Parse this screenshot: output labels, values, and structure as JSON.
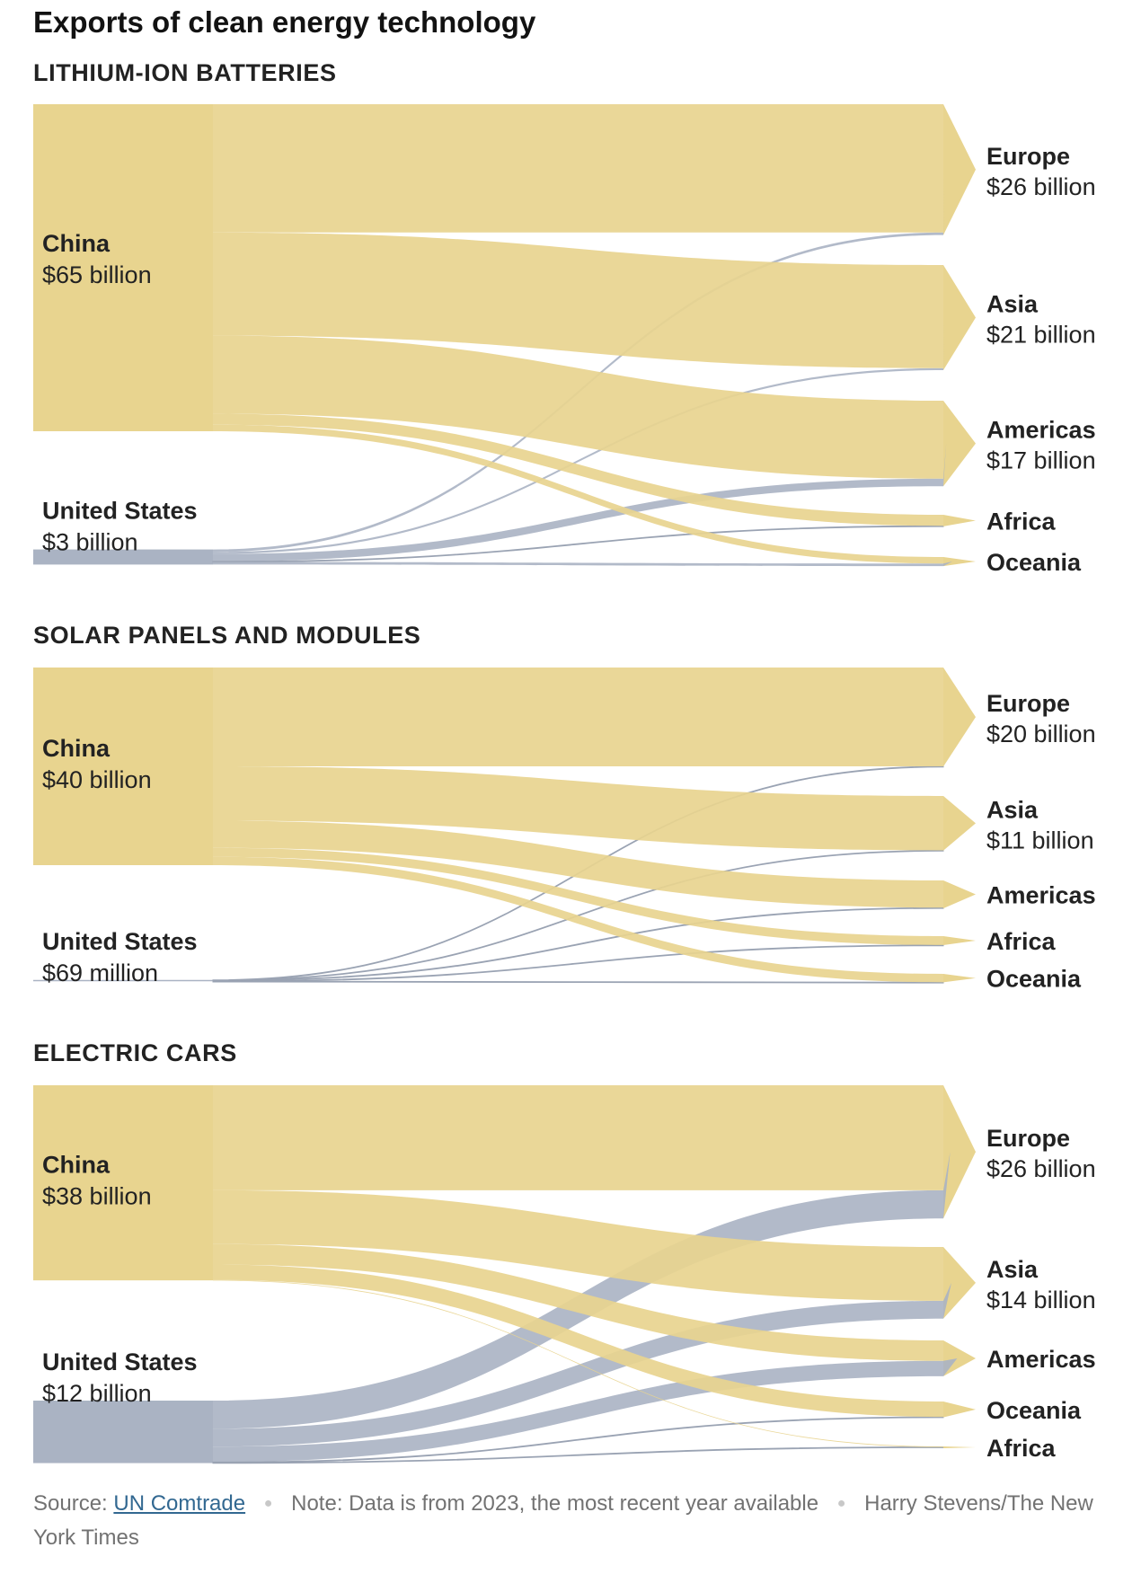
{
  "title": "Exports of clean energy technology",
  "colors": {
    "china": "#e8d48f",
    "united_states": "#aab3c3",
    "text": "#222222",
    "footer_text": "#727272",
    "link": "#326891"
  },
  "footer": {
    "source_label": "Source:",
    "source_link": "UN Comtrade",
    "note": "Note: Data is from 2023, the most recent year available",
    "credit": "Harry Stevens/The New York Times"
  },
  "chart_data": [
    {
      "type": "sankey",
      "title": "LITHIUM-ION BATTERIES",
      "unit": "USD billions",
      "sources": [
        {
          "id": "china",
          "name": "China",
          "label": "$65 billion",
          "value": 65
        },
        {
          "id": "us",
          "name": "United States",
          "label": "$3 billion",
          "value": 3
        }
      ],
      "targets": [
        {
          "id": "europe",
          "name": "Europe",
          "label": "$26 billion"
        },
        {
          "id": "asia",
          "name": "Asia",
          "label": "$21 billion"
        },
        {
          "id": "americas",
          "name": "Americas",
          "label": "$17 billion"
        },
        {
          "id": "africa",
          "name": "Africa",
          "label": ""
        },
        {
          "id": "oceania",
          "name": "Oceania",
          "label": ""
        }
      ],
      "flows": [
        {
          "source": "china",
          "target": "europe",
          "value": 25.5
        },
        {
          "source": "china",
          "target": "asia",
          "value": 20.5
        },
        {
          "source": "china",
          "target": "americas",
          "value": 15.5
        },
        {
          "source": "china",
          "target": "africa",
          "value": 2.2
        },
        {
          "source": "china",
          "target": "oceania",
          "value": 1.3
        },
        {
          "source": "us",
          "target": "europe",
          "value": 0.5
        },
        {
          "source": "us",
          "target": "asia",
          "value": 0.4
        },
        {
          "source": "us",
          "target": "americas",
          "value": 1.5
        },
        {
          "source": "us",
          "target": "africa",
          "value": 0.1
        },
        {
          "source": "us",
          "target": "oceania",
          "value": 0.5
        }
      ]
    },
    {
      "type": "sankey",
      "title": "SOLAR PANELS AND MODULES",
      "unit": "USD billions",
      "sources": [
        {
          "id": "china",
          "name": "China",
          "label": "$40 billion",
          "value": 40
        },
        {
          "id": "us",
          "name": "United States",
          "label": "$69 million",
          "value": 0.069
        }
      ],
      "targets": [
        {
          "id": "europe",
          "name": "Europe",
          "label": "$20 billion"
        },
        {
          "id": "asia",
          "name": "Asia",
          "label": "$11 billion"
        },
        {
          "id": "americas",
          "name": "Americas",
          "label": ""
        },
        {
          "id": "africa",
          "name": "Africa",
          "label": ""
        },
        {
          "id": "oceania",
          "name": "Oceania",
          "label": ""
        }
      ],
      "flows": [
        {
          "source": "china",
          "target": "europe",
          "value": 20
        },
        {
          "source": "china",
          "target": "asia",
          "value": 11
        },
        {
          "source": "china",
          "target": "americas",
          "value": 5.5
        },
        {
          "source": "china",
          "target": "africa",
          "value": 1.8
        },
        {
          "source": "china",
          "target": "oceania",
          "value": 1.7
        },
        {
          "source": "us",
          "target": "europe",
          "value": 0.01
        },
        {
          "source": "us",
          "target": "asia",
          "value": 0.01
        },
        {
          "source": "us",
          "target": "americas",
          "value": 0.04
        },
        {
          "source": "us",
          "target": "africa",
          "value": 0.005
        },
        {
          "source": "us",
          "target": "oceania",
          "value": 0.004
        }
      ]
    },
    {
      "type": "sankey",
      "title": "ELECTRIC CARS",
      "unit": "USD billions",
      "sources": [
        {
          "id": "china",
          "name": "China",
          "label": "$38 billion",
          "value": 38
        },
        {
          "id": "us",
          "name": "United States",
          "label": "$12 billion",
          "value": 12
        }
      ],
      "targets": [
        {
          "id": "europe",
          "name": "Europe",
          "label": "$26 billion"
        },
        {
          "id": "asia",
          "name": "Asia",
          "label": "$14 billion"
        },
        {
          "id": "americas",
          "name": "Americas",
          "label": ""
        },
        {
          "id": "oceania",
          "name": "Oceania",
          "label": ""
        },
        {
          "id": "africa",
          "name": "Africa",
          "label": ""
        }
      ],
      "flows": [
        {
          "source": "china",
          "target": "europe",
          "value": 20.5
        },
        {
          "source": "china",
          "target": "asia",
          "value": 10.5
        },
        {
          "source": "china",
          "target": "americas",
          "value": 4.0
        },
        {
          "source": "china",
          "target": "oceania",
          "value": 3.0
        },
        {
          "source": "china",
          "target": "africa",
          "value": 0.1
        },
        {
          "source": "us",
          "target": "europe",
          "value": 5.5
        },
        {
          "source": "us",
          "target": "asia",
          "value": 3.5
        },
        {
          "source": "us",
          "target": "americas",
          "value": 3.0
        },
        {
          "source": "us",
          "target": "oceania",
          "value": 0.1
        },
        {
          "source": "us",
          "target": "africa",
          "value": 0.1
        }
      ]
    }
  ]
}
